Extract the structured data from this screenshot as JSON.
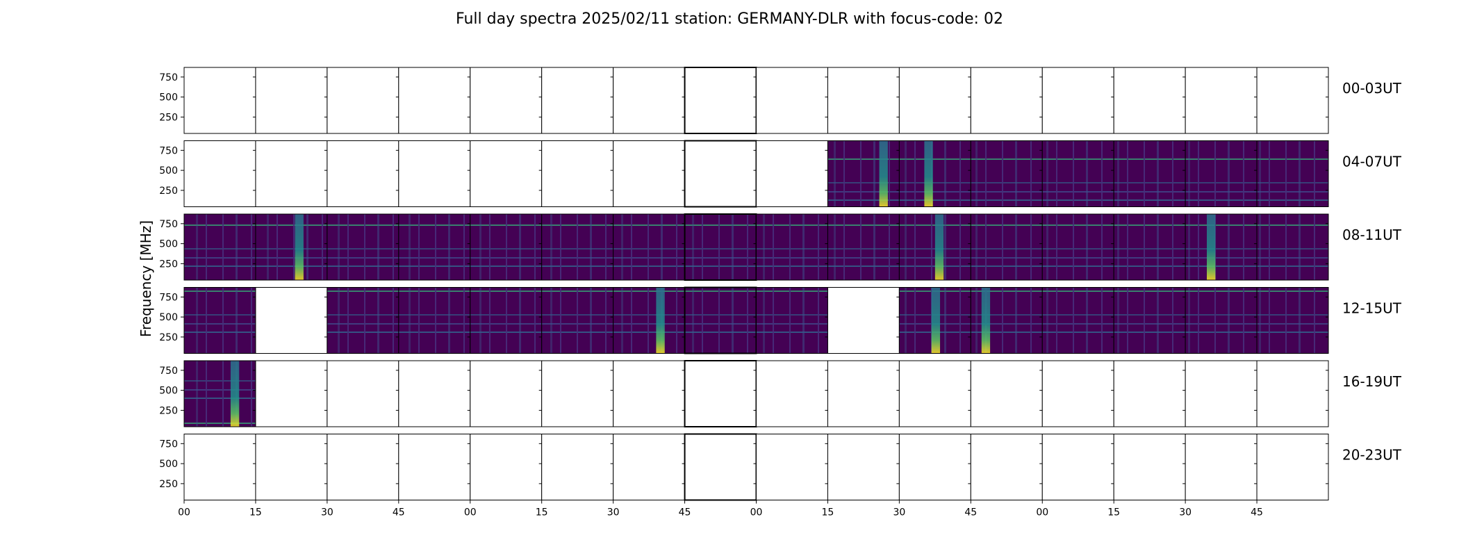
{
  "chart_data": {
    "type": "heatmap",
    "title": "Full day spectra 2025/02/11 station: GERMANY-DLR with focus-code: 02",
    "ylabel": "Frequency [MHz]",
    "xlabel": "",
    "ylim": [
      45,
      870
    ],
    "yticks": [
      250,
      500,
      750
    ],
    "ytick_labels": [
      "250",
      "500",
      "750"
    ],
    "xticks": [
      0,
      1,
      2,
      3,
      4,
      5,
      6,
      7,
      8,
      9,
      10,
      11,
      12,
      13,
      14,
      15
    ],
    "xtick_labels": [
      "00",
      "15",
      "30",
      "45",
      "00",
      "15",
      "30",
      "45",
      "00",
      "15",
      "30",
      "45",
      "00",
      "15",
      "30",
      "45"
    ],
    "colormap": "viridis",
    "colors": {
      "low": "#440154",
      "mid": "#21918c",
      "high": "#fde725"
    },
    "rows": [
      {
        "label": "00-03UT",
        "panels": [
          "empty",
          "empty",
          "empty",
          "empty",
          "empty",
          "empty",
          "empty",
          "empty",
          "empty",
          "empty",
          "empty",
          "empty",
          "empty",
          "empty",
          "empty",
          "empty"
        ]
      },
      {
        "label": "04-07UT",
        "panels": [
          "empty",
          "empty",
          "empty",
          "empty",
          "empty",
          "empty",
          "empty",
          "empty",
          "empty",
          "data",
          "data",
          "data",
          "data",
          "data",
          "data",
          "data"
        ]
      },
      {
        "label": "08-11UT",
        "panels": [
          "data",
          "data",
          "data",
          "data",
          "data",
          "data",
          "data",
          "data",
          "data",
          "data",
          "data",
          "data",
          "data",
          "data",
          "data",
          "data"
        ]
      },
      {
        "label": "12-15UT",
        "panels": [
          "data",
          "empty",
          "data",
          "data",
          "data",
          "data",
          "data",
          "data",
          "data",
          "empty",
          "data",
          "data",
          "data",
          "data",
          "data",
          "data"
        ]
      },
      {
        "label": "16-19UT",
        "panels": [
          "data",
          "empty",
          "empty",
          "empty",
          "empty",
          "empty",
          "empty",
          "empty",
          "empty",
          "empty",
          "empty",
          "empty",
          "empty",
          "empty",
          "empty",
          "empty"
        ]
      },
      {
        "label": "20-23UT",
        "panels": [
          "empty",
          "empty",
          "empty",
          "empty",
          "empty",
          "empty",
          "empty",
          "empty",
          "empty",
          "empty",
          "empty",
          "empty",
          "empty",
          "empty",
          "empty",
          "empty"
        ]
      }
    ]
  }
}
